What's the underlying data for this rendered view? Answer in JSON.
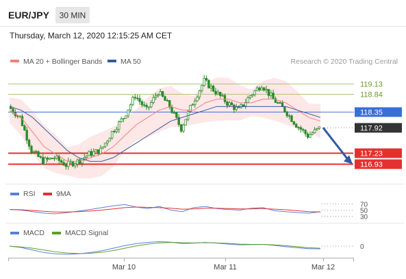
{
  "header": {
    "symbol": "EUR/JPY",
    "timeframe": "30 MIN",
    "timestamp": "Thursday, March 12, 2020 12:15:25 AM CET"
  },
  "legend": {
    "ma20": "MA 20 + Bollinger Bands",
    "ma50": "MA 50",
    "credit": "Research © 2020 Trading Central"
  },
  "colors": {
    "candle": "#2e8b2e",
    "ma20": "#f08080",
    "ma50": "#3a5a9b",
    "band_fill": "#fde3e3",
    "resistance": "#a9c77a",
    "support": "#e53030",
    "pivot": "#3a6fd8",
    "current": "#333333",
    "arrow": "#2f5aa8",
    "rsi": "#5b7fd6",
    "rsi_ma": "#e53030",
    "macd": "#5b7fd6",
    "macd_signal": "#5aa02c"
  },
  "chart_data": {
    "type": "candlestick",
    "x_labels": [
      "Mar 10",
      "Mar 11",
      "Mar 12"
    ],
    "ylim": [
      116.5,
      119.5
    ],
    "levels": [
      {
        "name": "resistance",
        "value": 119.13,
        "label": "119.13"
      },
      {
        "name": "resistance",
        "value": 118.84,
        "label": "118.84"
      },
      {
        "name": "pivot",
        "value": 118.35,
        "label": "118.35"
      },
      {
        "name": "current",
        "value": 117.92,
        "label": "117.92"
      },
      {
        "name": "support",
        "value": 117.23,
        "label": "117.23"
      },
      {
        "name": "support",
        "value": 116.93,
        "label": "116.93"
      }
    ],
    "price_path": [
      118.5,
      118.2,
      117.3,
      117.0,
      117.1,
      116.9,
      117.0,
      117.2,
      117.3,
      117.8,
      118.2,
      118.8,
      118.4,
      118.9,
      118.5,
      117.9,
      118.6,
      119.2,
      118.9,
      118.6,
      118.4,
      118.8,
      119.1,
      118.7,
      118.4,
      118.0,
      117.7,
      117.9
    ],
    "ma20": [
      118.4,
      118.2,
      117.8,
      117.4,
      117.2,
      117.0,
      117.0,
      117.1,
      117.2,
      117.4,
      117.7,
      118.0,
      118.2,
      118.4,
      118.5,
      118.4,
      118.4,
      118.6,
      118.7,
      118.7,
      118.6,
      118.6,
      118.7,
      118.7,
      118.6,
      118.4,
      118.2,
      118.1
    ],
    "ma50": [
      118.5,
      118.4,
      118.2,
      117.9,
      117.6,
      117.3,
      117.1,
      117.0,
      117.0,
      117.1,
      117.3,
      117.5,
      117.7,
      117.9,
      118.1,
      118.2,
      118.3,
      118.4,
      118.5,
      118.5,
      118.5,
      118.5,
      118.5,
      118.5,
      118.5,
      118.4,
      118.3,
      118.2
    ],
    "rsi": {
      "name": "RSI",
      "ma_name": "9MA",
      "levels": [
        "70",
        "50",
        "30"
      ],
      "values": [
        52,
        50,
        45,
        40,
        38,
        42,
        47,
        52,
        58,
        64,
        68,
        60,
        55,
        62,
        50,
        45,
        58,
        62,
        55,
        52,
        50,
        56,
        58,
        48,
        45,
        42,
        40,
        45
      ],
      "ma_values": [
        52,
        51,
        49,
        46,
        44,
        44,
        45,
        47,
        50,
        54,
        58,
        60,
        59,
        58,
        56,
        53,
        54,
        56,
        56,
        55,
        54,
        54,
        55,
        53,
        51,
        48,
        45,
        44
      ]
    },
    "macd": {
      "name": "MACD",
      "signal_name": "MACD Signal",
      "zero_label": "0",
      "values": [
        0.0,
        -0.05,
        -0.15,
        -0.25,
        -0.3,
        -0.32,
        -0.3,
        -0.25,
        -0.18,
        -0.08,
        0.02,
        0.1,
        0.15,
        0.18,
        0.16,
        0.1,
        0.12,
        0.15,
        0.12,
        0.08,
        0.05,
        0.06,
        0.07,
        0.03,
        -0.02,
        -0.06,
        -0.1,
        -0.1
      ],
      "signal": [
        0.0,
        -0.03,
        -0.08,
        -0.15,
        -0.22,
        -0.27,
        -0.29,
        -0.28,
        -0.24,
        -0.17,
        -0.08,
        0.01,
        0.08,
        0.13,
        0.15,
        0.14,
        0.13,
        0.14,
        0.13,
        0.11,
        0.08,
        0.07,
        0.07,
        0.05,
        0.02,
        -0.02,
        -0.06,
        -0.08
      ]
    }
  }
}
